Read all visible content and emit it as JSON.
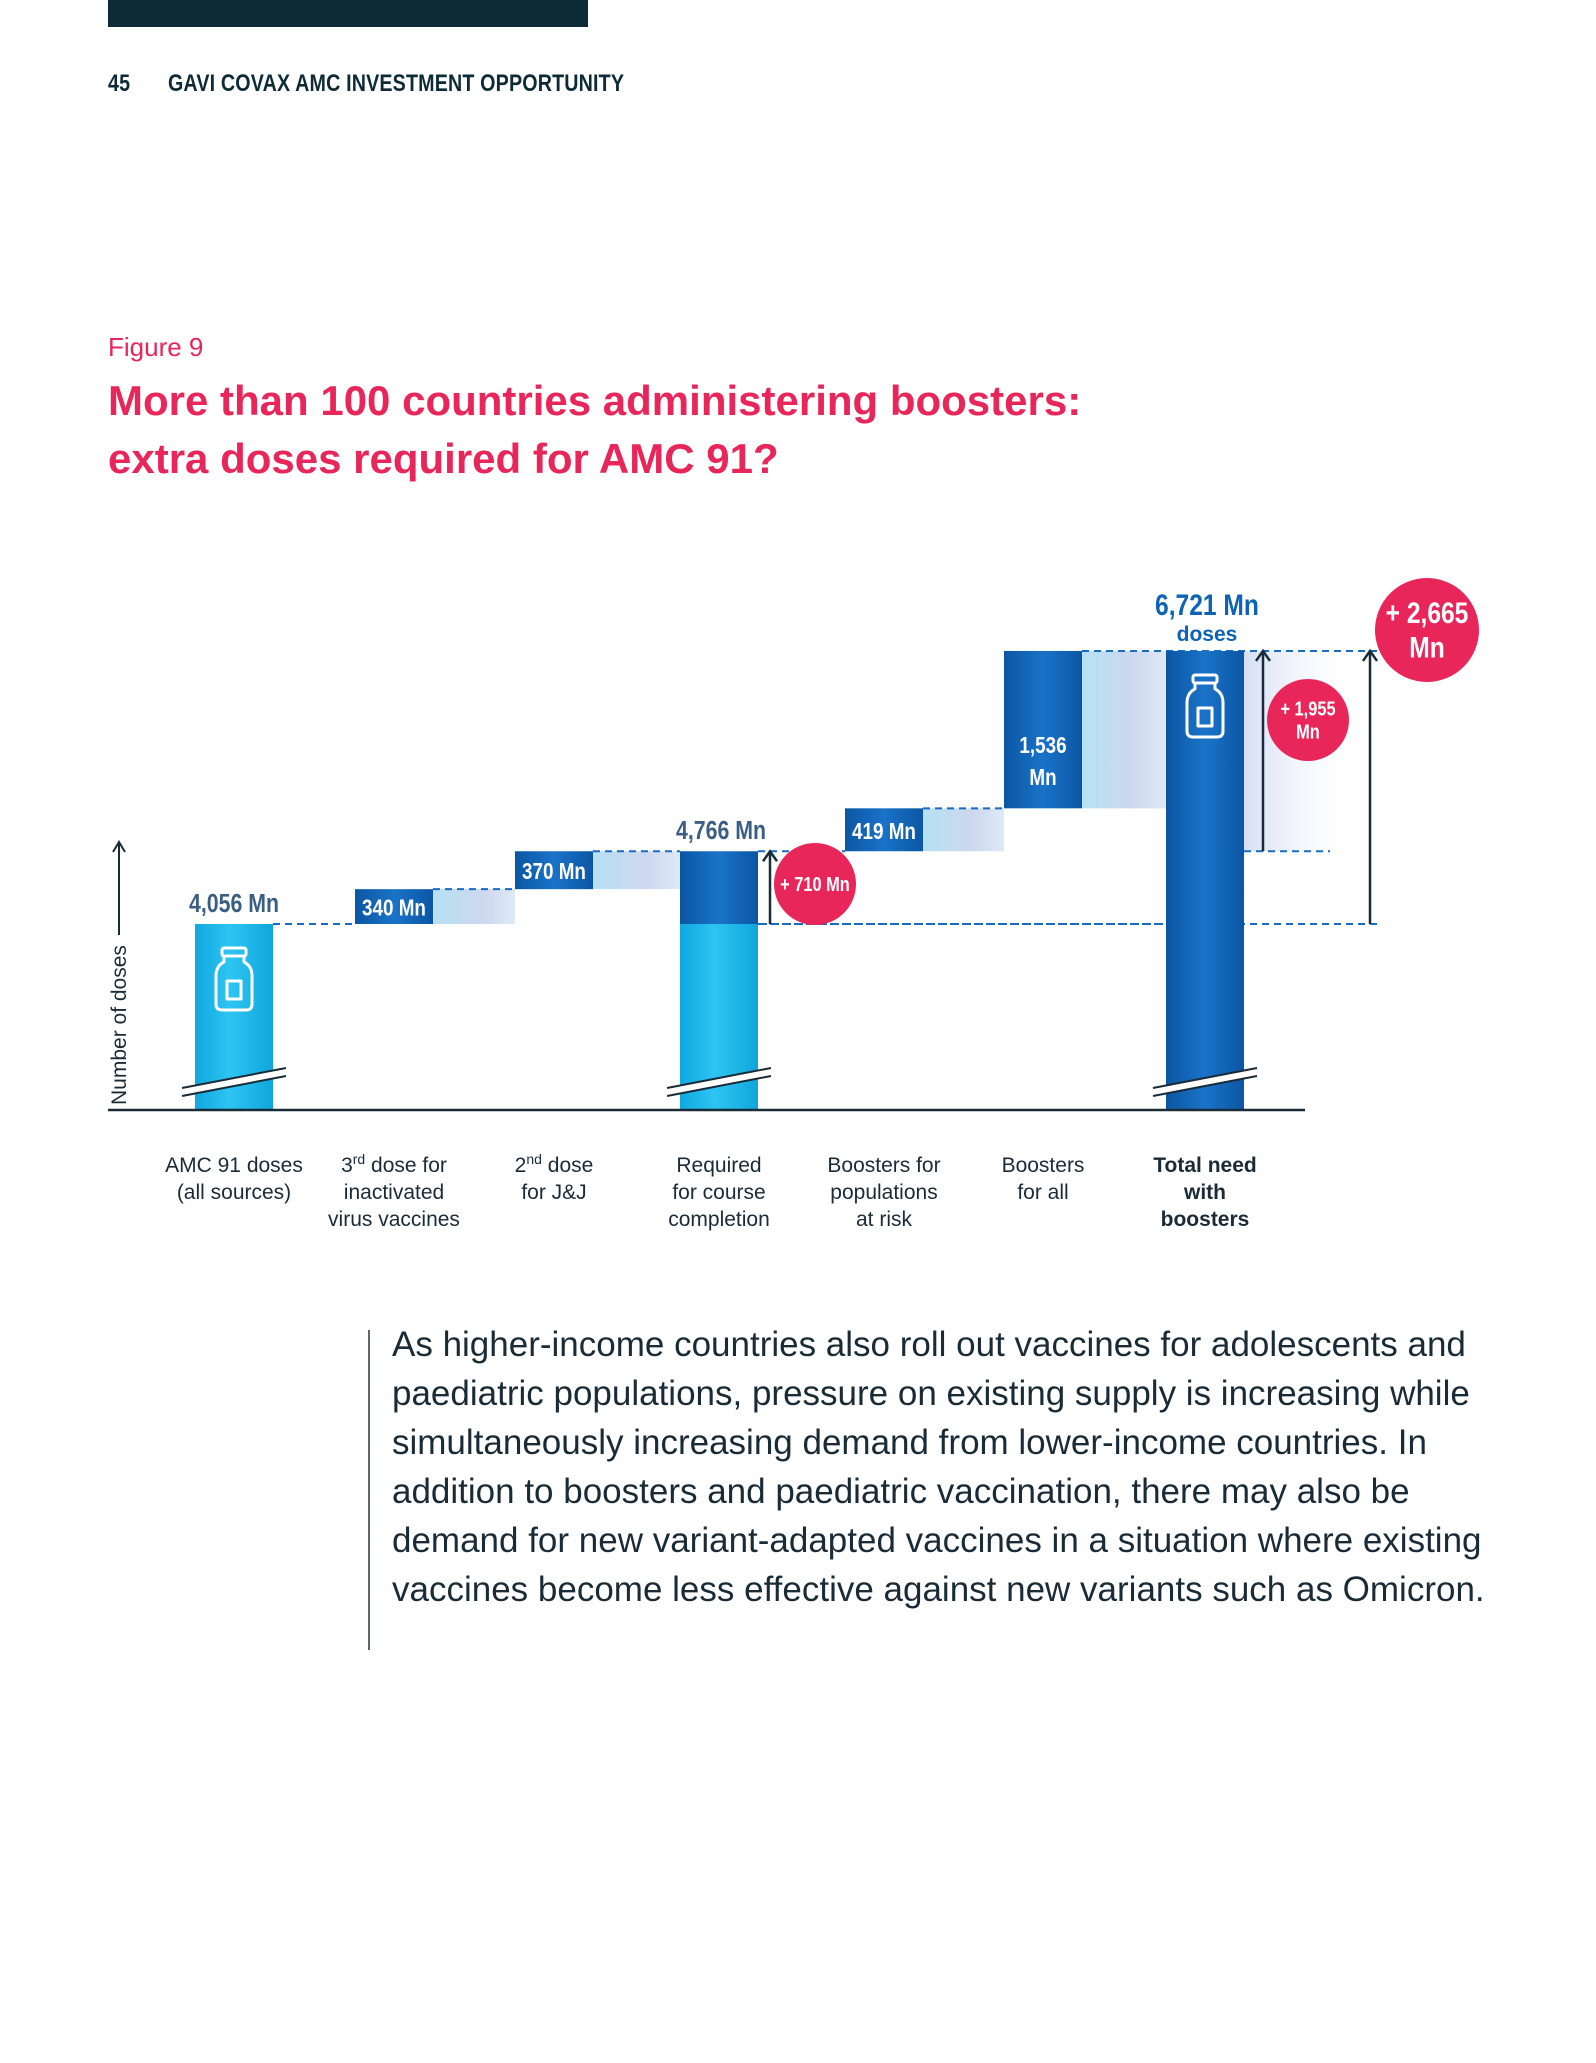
{
  "header": {
    "page_number": "45",
    "doc_title": "GAVI COVAX AMC INVESTMENT OPPORTUNITY"
  },
  "figure": {
    "label": "Figure 9",
    "title_line1": "More than 100 countries administering boosters:",
    "title_line2": "extra doses required for AMC 91?"
  },
  "chart_data": {
    "type": "bar",
    "subtype": "waterfall",
    "ylabel": "Number of doses",
    "unit": "Mn",
    "categories": [
      [
        "AMC 91 doses",
        "(all sources)"
      ],
      [
        "3rd dose for",
        "inactivated",
        "virus vaccines"
      ],
      [
        "2nd dose",
        "for J&J"
      ],
      [
        "Required",
        "for course",
        "completion"
      ],
      [
        "Boosters for",
        "populations",
        "at risk"
      ],
      [
        "Boosters",
        "for all"
      ],
      [
        "Total need",
        "with",
        "boosters"
      ]
    ],
    "bars": [
      {
        "kind": "total",
        "start": 0,
        "end": 4056,
        "label": "4,056 Mn"
      },
      {
        "kind": "increment",
        "start": 4056,
        "end": 4396,
        "label": "340 Mn"
      },
      {
        "kind": "increment",
        "start": 4396,
        "end": 4766,
        "label": "370 Mn"
      },
      {
        "kind": "subtotal",
        "start": 0,
        "end": 4766,
        "label": "4,766 Mn"
      },
      {
        "kind": "increment",
        "start": 4766,
        "end": 5185,
        "label": "419 Mn"
      },
      {
        "kind": "increment",
        "start": 5185,
        "end": 6721,
        "label_lines": [
          "1,536",
          "Mn"
        ]
      },
      {
        "kind": "total",
        "start": 0,
        "end": 6721,
        "label": "6,721 Mn",
        "sublabel": "doses"
      }
    ],
    "annotations": [
      {
        "text": "+ 710 Mn",
        "from": 4056,
        "to": 4766,
        "bar_index": 3
      },
      {
        "text_lines": [
          "+ 1,955",
          "Mn"
        ],
        "from": 4766,
        "to": 6721,
        "bar_index": 6
      },
      {
        "text_lines": [
          "+ 2,665",
          "Mn"
        ],
        "from": 4056,
        "to": 6721,
        "bar_index": 6
      }
    ],
    "axis_break": true,
    "bold_last_category": true,
    "colors": {
      "light": "#17b5e8",
      "dark": "#0d63b5",
      "badge": "#e8265a",
      "connector": "#1a6bc2",
      "axis": "#1a2b38"
    }
  },
  "body": {
    "paragraph": "As higher-income countries also roll out vaccines for adolescents and paediatric populations, pressure on existing supply is increasing while simultaneously increasing demand from lower-income countries. In addition to boosters and paediatric vaccination, there may also be demand for new variant-adapted vaccines in a situation where existing vaccines become less effective against new variants such as Omicron."
  }
}
